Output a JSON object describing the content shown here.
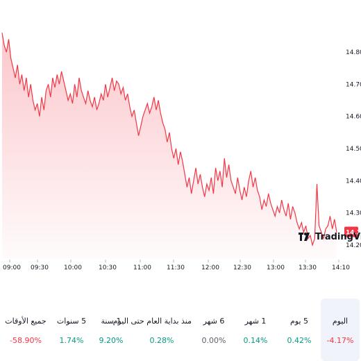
{
  "chart_data": {
    "type": "area",
    "x_ticks": [
      "09:00",
      "09:30",
      "10:00",
      "10:30",
      "11:00",
      "11:30",
      "12:00",
      "12:30",
      "13:00",
      "13:30",
      "14:10"
    ],
    "y_ticks": [
      14.8,
      14.7,
      14.6,
      14.5,
      14.4,
      14.3,
      14.2
    ],
    "ylim": [
      14.17,
      14.88
    ],
    "last_price": "14.24",
    "line_color": "#f23645",
    "series": [
      {
        "values": [
          14.86,
          14.82,
          14.8,
          14.84,
          14.78,
          14.75,
          14.72,
          14.76,
          14.7,
          14.73,
          14.68,
          14.72,
          14.66,
          14.7,
          14.65,
          14.62,
          14.64,
          14.6,
          14.66,
          14.62,
          14.68,
          14.7,
          14.66,
          14.72,
          14.69,
          14.73,
          14.7,
          14.74,
          14.71,
          14.68,
          14.65,
          14.67,
          14.64,
          14.7,
          14.66,
          14.72,
          14.68,
          14.66,
          14.64,
          14.68,
          14.65,
          14.63,
          14.66,
          14.62,
          14.64,
          14.67,
          14.65,
          14.7,
          14.66,
          14.69,
          14.72,
          14.68,
          14.71,
          14.7,
          14.67,
          14.69,
          14.65,
          14.67,
          14.63,
          14.6,
          14.62,
          14.58,
          14.54,
          14.57,
          14.6,
          14.62,
          14.64,
          14.61,
          14.63,
          14.66,
          14.62,
          14.65,
          14.61,
          14.58,
          14.56,
          14.52,
          14.55,
          14.5,
          14.47,
          14.5,
          14.45,
          14.49,
          14.46,
          14.42,
          14.38,
          14.41,
          14.36,
          14.4,
          14.44,
          14.39,
          14.42,
          14.38,
          14.35,
          14.39,
          14.37,
          14.41,
          14.36,
          14.44,
          14.4,
          14.43,
          14.38,
          14.47,
          14.41,
          14.45,
          14.4,
          14.38,
          14.36,
          14.41,
          14.37,
          14.34,
          14.38,
          14.35,
          14.4,
          14.43,
          14.38,
          14.41,
          14.37,
          14.35,
          14.31,
          14.34,
          14.32,
          14.36,
          14.33,
          14.31,
          14.29,
          14.32,
          14.3,
          14.34,
          14.31,
          14.29,
          14.33,
          14.28,
          14.32,
          14.3,
          14.27,
          14.25,
          14.27,
          14.24,
          14.26,
          14.22,
          14.23,
          14.2,
          14.22,
          14.39,
          14.26,
          14.24,
          14.22,
          14.25,
          14.26,
          14.29,
          14.25,
          14.28,
          14.24
        ]
      }
    ]
  },
  "periods": [
    {
      "label": "اليوم",
      "value": "4.17%-",
      "tone": "neg",
      "active": true
    },
    {
      "label": "5 يوم",
      "value": "0.42%",
      "tone": "pos",
      "active": false
    },
    {
      "label": "1 شهر",
      "value": "0.14%",
      "tone": "pos",
      "active": false
    },
    {
      "label": "6 شهر",
      "value": "0.00%",
      "tone": "neutral",
      "active": false
    },
    {
      "label": "منذ بداية العام حتى اليوم",
      "value": "0.28%",
      "tone": "pos",
      "active": false
    },
    {
      "label": "1 سنة",
      "value": "9.20%",
      "tone": "pos",
      "active": false
    },
    {
      "label": "5 سنوات",
      "value": "1.74%",
      "tone": "pos",
      "active": false
    },
    {
      "label": "جميع الأوقات",
      "value": "58.90%-",
      "tone": "neg",
      "active": false
    }
  ],
  "logo_text": "TradingView"
}
